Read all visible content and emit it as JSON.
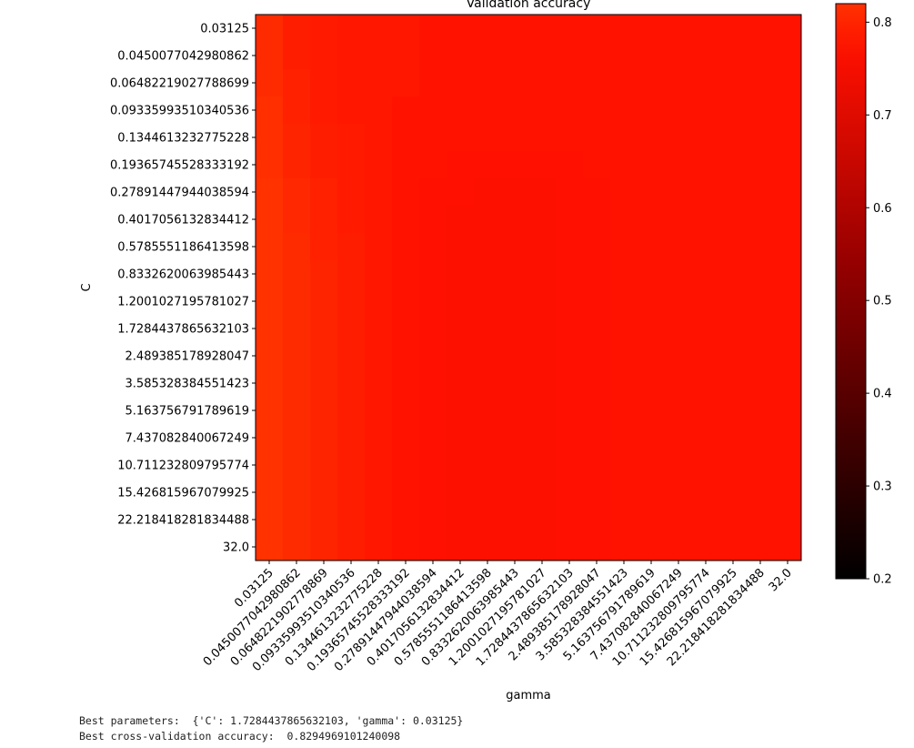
{
  "chart_data": {
    "type": "heatmap",
    "title": "Validation accuracy",
    "xlabel": "gamma",
    "ylabel": "C",
    "x_ticks": [
      "0.03125",
      "0.0450077042980862",
      "0.0648221902778869",
      "0.09335993510340536",
      "0.1344613232775228",
      "0.19365745528333192",
      "0.27891447944038594",
      "0.4017056132834412",
      "0.5785551186413598",
      "0.8332620063985443",
      "1.2001027195781027",
      "1.7284437865632103",
      "2.489385178928047",
      "3.585328384551423",
      "5.163756791789619",
      "7.437082840067249",
      "10.711232809795774",
      "15.426815967079925",
      "22.218418281834488",
      "32.0"
    ],
    "y_ticks": [
      "0.03125",
      "0.0450077042980862",
      "0.06482219027788699",
      "0.09335993510340536",
      "0.1344613232775228",
      "0.19365745528333192",
      "0.27891447944038594",
      "0.4017056132834412",
      "0.5785551186413598",
      "0.8332620063985443",
      "1.2001027195781027",
      "1.7284437865632103",
      "2.489385178928047",
      "3.585328384551423",
      "5.163756791789619",
      "7.437082840067249",
      "10.711232809795774",
      "15.426815967079925",
      "22.218418281834488",
      "32.0"
    ],
    "values": [
      [
        0.81,
        0.79,
        0.785,
        0.78,
        0.78,
        0.78,
        0.775,
        0.775,
        0.775,
        0.775,
        0.775,
        0.775,
        0.775,
        0.775,
        0.775,
        0.775,
        0.775,
        0.775,
        0.775,
        0.775
      ],
      [
        0.81,
        0.79,
        0.785,
        0.78,
        0.78,
        0.78,
        0.775,
        0.775,
        0.775,
        0.775,
        0.775,
        0.775,
        0.775,
        0.775,
        0.775,
        0.775,
        0.775,
        0.775,
        0.775,
        0.775
      ],
      [
        0.81,
        0.795,
        0.785,
        0.78,
        0.78,
        0.78,
        0.775,
        0.775,
        0.775,
        0.775,
        0.775,
        0.775,
        0.775,
        0.775,
        0.775,
        0.775,
        0.775,
        0.775,
        0.775,
        0.775
      ],
      [
        0.815,
        0.795,
        0.785,
        0.78,
        0.78,
        0.775,
        0.775,
        0.775,
        0.775,
        0.775,
        0.775,
        0.775,
        0.775,
        0.775,
        0.775,
        0.775,
        0.775,
        0.775,
        0.775,
        0.775
      ],
      [
        0.815,
        0.8,
        0.79,
        0.785,
        0.78,
        0.775,
        0.775,
        0.775,
        0.775,
        0.775,
        0.775,
        0.775,
        0.775,
        0.775,
        0.775,
        0.775,
        0.775,
        0.775,
        0.775,
        0.775
      ],
      [
        0.815,
        0.8,
        0.79,
        0.785,
        0.78,
        0.775,
        0.775,
        0.77,
        0.77,
        0.77,
        0.77,
        0.77,
        0.775,
        0.775,
        0.775,
        0.775,
        0.775,
        0.775,
        0.775,
        0.775
      ],
      [
        0.82,
        0.805,
        0.795,
        0.785,
        0.78,
        0.775,
        0.77,
        0.77,
        0.765,
        0.765,
        0.765,
        0.77,
        0.77,
        0.775,
        0.775,
        0.775,
        0.775,
        0.775,
        0.775,
        0.775
      ],
      [
        0.82,
        0.805,
        0.795,
        0.785,
        0.78,
        0.775,
        0.77,
        0.765,
        0.765,
        0.765,
        0.765,
        0.77,
        0.77,
        0.775,
        0.775,
        0.775,
        0.775,
        0.775,
        0.775,
        0.775
      ],
      [
        0.82,
        0.81,
        0.795,
        0.79,
        0.78,
        0.775,
        0.77,
        0.765,
        0.765,
        0.765,
        0.765,
        0.77,
        0.77,
        0.775,
        0.775,
        0.775,
        0.775,
        0.775,
        0.775,
        0.775
      ],
      [
        0.825,
        0.81,
        0.8,
        0.79,
        0.78,
        0.775,
        0.77,
        0.765,
        0.765,
        0.765,
        0.765,
        0.77,
        0.77,
        0.775,
        0.775,
        0.775,
        0.775,
        0.775,
        0.775,
        0.775
      ],
      [
        0.825,
        0.81,
        0.8,
        0.79,
        0.78,
        0.775,
        0.77,
        0.765,
        0.765,
        0.765,
        0.765,
        0.77,
        0.77,
        0.775,
        0.775,
        0.775,
        0.775,
        0.775,
        0.775,
        0.775
      ],
      [
        0.829,
        0.81,
        0.8,
        0.79,
        0.78,
        0.775,
        0.77,
        0.765,
        0.765,
        0.765,
        0.765,
        0.77,
        0.77,
        0.775,
        0.775,
        0.775,
        0.775,
        0.775,
        0.775,
        0.775
      ],
      [
        0.825,
        0.81,
        0.8,
        0.79,
        0.78,
        0.775,
        0.77,
        0.765,
        0.765,
        0.765,
        0.765,
        0.77,
        0.77,
        0.775,
        0.775,
        0.775,
        0.775,
        0.775,
        0.775,
        0.775
      ],
      [
        0.825,
        0.81,
        0.8,
        0.79,
        0.78,
        0.775,
        0.77,
        0.765,
        0.765,
        0.765,
        0.765,
        0.77,
        0.77,
        0.775,
        0.775,
        0.775,
        0.775,
        0.775,
        0.775,
        0.775
      ],
      [
        0.825,
        0.81,
        0.8,
        0.79,
        0.78,
        0.775,
        0.77,
        0.765,
        0.765,
        0.765,
        0.765,
        0.77,
        0.77,
        0.775,
        0.775,
        0.775,
        0.775,
        0.775,
        0.775,
        0.775
      ],
      [
        0.82,
        0.81,
        0.8,
        0.79,
        0.78,
        0.775,
        0.77,
        0.765,
        0.765,
        0.765,
        0.765,
        0.77,
        0.77,
        0.775,
        0.775,
        0.775,
        0.775,
        0.775,
        0.775,
        0.775
      ],
      [
        0.82,
        0.81,
        0.8,
        0.79,
        0.78,
        0.775,
        0.77,
        0.765,
        0.765,
        0.765,
        0.765,
        0.77,
        0.77,
        0.775,
        0.775,
        0.775,
        0.775,
        0.775,
        0.775,
        0.775
      ],
      [
        0.82,
        0.81,
        0.8,
        0.79,
        0.78,
        0.775,
        0.77,
        0.765,
        0.765,
        0.765,
        0.765,
        0.77,
        0.77,
        0.775,
        0.775,
        0.775,
        0.775,
        0.775,
        0.775,
        0.775
      ],
      [
        0.82,
        0.81,
        0.8,
        0.79,
        0.78,
        0.775,
        0.77,
        0.765,
        0.765,
        0.765,
        0.765,
        0.77,
        0.77,
        0.775,
        0.775,
        0.775,
        0.775,
        0.775,
        0.775,
        0.775
      ],
      [
        0.82,
        0.81,
        0.8,
        0.79,
        0.78,
        0.775,
        0.77,
        0.765,
        0.765,
        0.765,
        0.765,
        0.77,
        0.77,
        0.775,
        0.775,
        0.775,
        0.775,
        0.775,
        0.775,
        0.775
      ]
    ],
    "colorbar": {
      "min": 0.2,
      "max": 0.82,
      "ticks": [
        "0.2",
        "0.3",
        "0.4",
        "0.5",
        "0.6",
        "0.7",
        "0.8"
      ],
      "colormap": "black-red-orange"
    },
    "grid": false
  },
  "output": {
    "line1": "Best parameters:  {'C': 1.7284437865632103, 'gamma': 0.03125}",
    "line2": "Best cross-validation accuracy:  0.8294969101240098"
  }
}
